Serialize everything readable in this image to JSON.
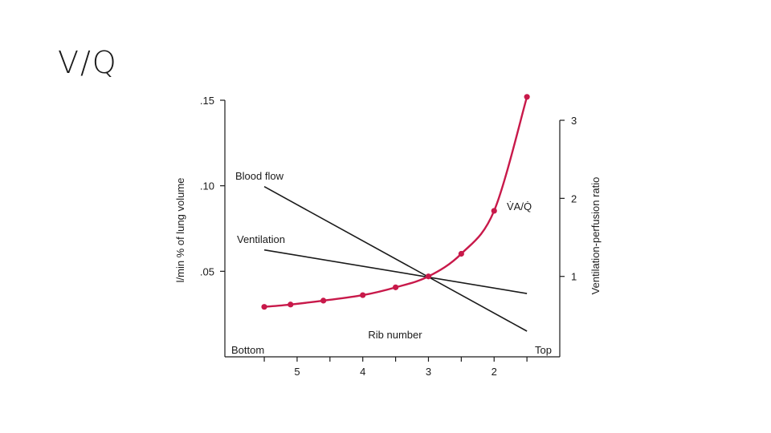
{
  "slide": {
    "title": "V/Q"
  },
  "chart_data": {
    "type": "line",
    "x_categories": [
      "5",
      "4",
      "3",
      "2"
    ],
    "x_axis_title": "Rib number",
    "x_left_label": "Bottom",
    "x_right_label": "Top",
    "x_range": [
      6.1,
      1.0
    ],
    "y_left": {
      "label": "l/min % of lung volume",
      "ticks": [
        ".15",
        ".10",
        ".05"
      ],
      "tick_values": [
        0.15,
        0.1,
        0.05
      ],
      "range": [
        0,
        0.15
      ]
    },
    "y_right": {
      "label": "Ventilation-perfusion ratio",
      "ticks": [
        "3",
        "2",
        "1"
      ],
      "tick_values": [
        3,
        2,
        1
      ],
      "range": [
        -0.03,
        3.0
      ]
    },
    "series": [
      {
        "name": "Blood flow",
        "axis": "left",
        "color": "#1a1a1a",
        "x": [
          5.5,
          1.5
        ],
        "y": [
          0.0995,
          0.015
        ]
      },
      {
        "name": "Ventilation",
        "axis": "left",
        "color": "#1a1a1a",
        "x": [
          5.5,
          1.5
        ],
        "y": [
          0.0625,
          0.037
        ]
      },
      {
        "name": "V̇A/Q̇",
        "axis": "right",
        "color": "#c8194a",
        "x": [
          5.5,
          5.1,
          4.6,
          4.0,
          3.5,
          3.0,
          2.5,
          2.0,
          1.5
        ],
        "y": [
          0.61,
          0.64,
          0.69,
          0.76,
          0.86,
          1.0,
          1.29,
          1.84,
          3.3
        ]
      }
    ]
  }
}
